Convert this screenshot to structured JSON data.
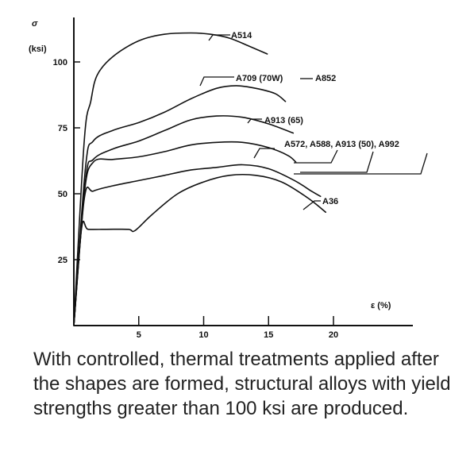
{
  "chart_data": {
    "type": "line",
    "ylabel_symbol": "σ",
    "ylabel_unit": "(ksi)",
    "xlabel": "ε (%)",
    "x_ticks": [
      5,
      10,
      15,
      20
    ],
    "y_ticks": [
      25,
      50,
      75,
      100
    ],
    "xlim": [
      0,
      25
    ],
    "ylim": [
      0,
      118
    ],
    "series": [
      {
        "name": "A514",
        "x": [
          0,
          0.8,
          1.3,
          1.8,
          3,
          5,
          7,
          9,
          10.5,
          12,
          13.5,
          14.9
        ],
        "y": [
          0,
          70,
          85,
          95,
          102,
          108,
          110.5,
          111,
          110.5,
          109,
          106,
          103
        ]
      },
      {
        "name": "A709 (70W) — A852",
        "x": [
          0,
          0.9,
          1.5,
          3,
          5,
          7,
          9,
          11,
          12.5,
          14,
          15.5,
          16.3
        ],
        "y": [
          0,
          60,
          70,
          74,
          77,
          81,
          86,
          90,
          91,
          90,
          88,
          85
        ]
      },
      {
        "name": "A913 (65)",
        "x": [
          0,
          0.9,
          1.5,
          3,
          5,
          7,
          9,
          11,
          13,
          15,
          16.9
        ],
        "y": [
          0,
          55,
          63,
          67,
          70,
          74,
          78,
          79.5,
          79,
          76.5,
          73
        ]
      },
      {
        "name": "A572, A588, A913 (50), A992",
        "x": [
          0,
          0.8,
          1.5,
          3,
          5,
          7,
          9,
          11,
          13,
          15,
          16.5,
          17.1
        ],
        "y": [
          0,
          50,
          62,
          63,
          64,
          66,
          68.5,
          69.5,
          69.5,
          67.5,
          64.5,
          62
        ]
      },
      {
        "name": "A36",
        "x": [
          0,
          0.8,
          1.5,
          3,
          5,
          7,
          9,
          11,
          13,
          15,
          17,
          18.3,
          19
        ],
        "y": [
          0,
          48,
          51,
          53,
          55,
          57,
          59,
          60,
          61,
          59.5,
          55,
          51,
          49
        ]
      },
      {
        "name": "",
        "x": [
          0,
          0.6,
          1.1,
          2.5,
          4.2,
          4.7,
          6,
          8,
          10,
          12,
          14,
          16,
          18,
          19.4
        ],
        "y": [
          0,
          37,
          36.5,
          36.5,
          36.5,
          36,
          42,
          50,
          54.5,
          57,
          57,
          54.5,
          48.5,
          43
        ]
      }
    ],
    "labels": [
      {
        "text": "A514"
      },
      {
        "text": "A709 (70W)"
      },
      {
        "text": "A852"
      },
      {
        "text": "A913 (65)"
      },
      {
        "text": "A572, A588, A913 (50), A992"
      },
      {
        "text": "A36"
      }
    ]
  },
  "caption": "With controlled, thermal treatments applied after the shapes are formed, structural alloys with yield strengths greater than 100 ksi are produced."
}
